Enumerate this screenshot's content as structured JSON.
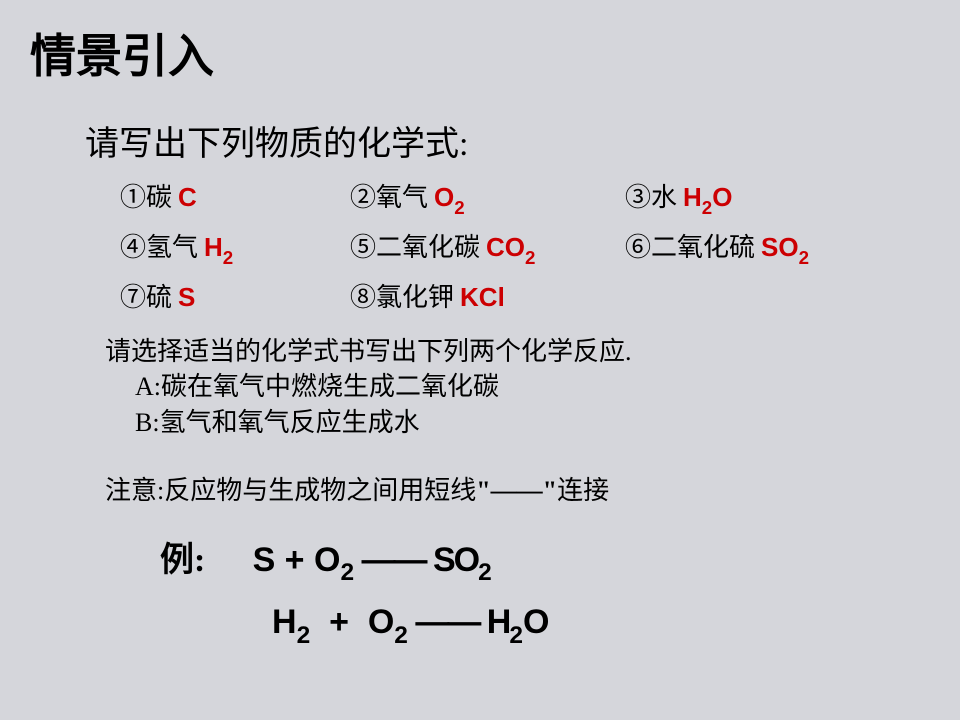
{
  "title": "情景引入",
  "instruction": "请写出下列物质的化学式:",
  "items": {
    "i1": {
      "label": "①碳",
      "formula": "C"
    },
    "i2": {
      "label": "②氧气",
      "formula_main": "O",
      "formula_sub": "2"
    },
    "i3": {
      "label": "③水",
      "formula_a": "H",
      "formula_sub1": "2",
      "formula_b": "O"
    },
    "i4": {
      "label": "④氢气",
      "formula_main": "H",
      "formula_sub": "2"
    },
    "i5": {
      "label": "⑤二氧化碳",
      "formula_main": "CO",
      "formula_sub": "2"
    },
    "i6": {
      "label": "⑥二氧化硫",
      "formula_main": "SO",
      "formula_sub": "2"
    },
    "i7": {
      "label": "⑦硫",
      "formula": "S"
    },
    "i8": {
      "label": "⑧氯化钾",
      "formula": "KCl"
    }
  },
  "section2": {
    "line1": "请选择适当的化学式书写出下列两个化学反应.",
    "lineA": "A:碳在氧气中燃烧生成二氧化碳",
    "lineB": "B:氢气和氧气反应生成水"
  },
  "note": {
    "pre": "注意:反应物与生成物之间用短线",
    "dash": "\"——\"",
    "post": "连接"
  },
  "example": {
    "label": "例:",
    "spacer": "     ",
    "s": "S  +  O",
    "sub1": "2",
    "arrow": " ——  SO",
    "sub2": "2"
  },
  "equation2": {
    "h": "H",
    "sub1": "2",
    "plus": "  +  O",
    "sub2": "2",
    "arrow": " ——  H",
    "sub3": "2",
    "end": "O"
  },
  "colors": {
    "formula": "#cc0002",
    "text": "#000000",
    "background": "#d5d6db"
  }
}
